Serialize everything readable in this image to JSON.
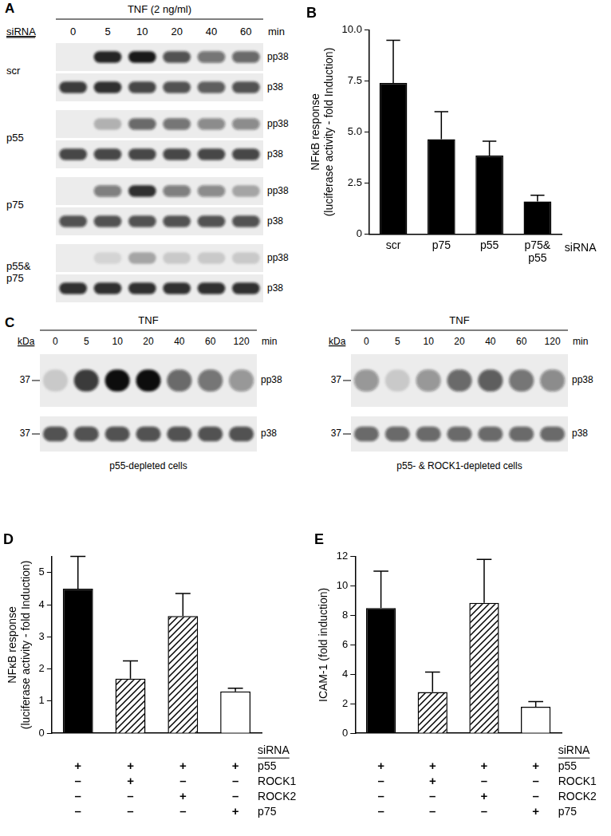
{
  "panel_A": {
    "label": "A",
    "treatment": "TNF (2 ng/ml)",
    "siRNA_label": "siRNA",
    "times": [
      0,
      5,
      10,
      20,
      40,
      60
    ],
    "time_unit": "min",
    "groups": [
      {
        "siRNA": "scr",
        "rows": [
          {
            "name": "pp38",
            "band_intensity": [
              0.0,
              0.9,
              0.95,
              0.7,
              0.55,
              0.6
            ]
          },
          {
            "name": "p38",
            "band_intensity": [
              0.8,
              0.85,
              0.75,
              0.7,
              0.65,
              0.7
            ]
          }
        ]
      },
      {
        "siRNA": "p55",
        "rows": [
          {
            "name": "pp38",
            "band_intensity": [
              0.0,
              0.25,
              0.6,
              0.55,
              0.45,
              0.45
            ]
          },
          {
            "name": "p38",
            "band_intensity": [
              0.75,
              0.75,
              0.75,
              0.75,
              0.75,
              0.75
            ]
          }
        ]
      },
      {
        "siRNA": "p75",
        "rows": [
          {
            "name": "pp38",
            "band_intensity": [
              0.0,
              0.5,
              0.85,
              0.5,
              0.45,
              0.3
            ]
          },
          {
            "name": "p38",
            "band_intensity": [
              0.7,
              0.7,
              0.7,
              0.7,
              0.7,
              0.7
            ]
          }
        ]
      },
      {
        "siRNA": "p55&\np75",
        "rows": [
          {
            "name": "pp38",
            "band_intensity": [
              0.0,
              0.1,
              0.3,
              0.15,
              0.15,
              0.15
            ]
          },
          {
            "name": "p38",
            "band_intensity": [
              0.85,
              0.85,
              0.85,
              0.85,
              0.85,
              0.85
            ]
          }
        ]
      }
    ]
  },
  "panel_C": {
    "label": "C",
    "blots": [
      {
        "kDa_label": "kDa",
        "treatment": "TNF",
        "times": [
          0,
          5,
          10,
          20,
          40,
          60,
          120
        ],
        "time_unit": "min",
        "caption": "p55-depleted cells",
        "rows": [
          {
            "name": "pp38",
            "kDa": 37,
            "band_intensity": [
              0.15,
              0.8,
              1.0,
              1.0,
              0.6,
              0.55,
              0.4
            ]
          },
          {
            "name": "p38",
            "kDa": 37,
            "band_intensity": [
              0.7,
              0.7,
              0.7,
              0.7,
              0.7,
              0.7,
              0.7
            ]
          }
        ]
      },
      {
        "kDa_label": "kDa",
        "treatment": "TNF",
        "times": [
          0,
          5,
          10,
          20,
          40,
          60,
          120
        ],
        "time_unit": "min",
        "caption": "p55- & ROCK1-depleted cells",
        "rows": [
          {
            "name": "pp38",
            "kDa": 37,
            "band_intensity": [
              0.4,
              0.15,
              0.4,
              0.6,
              0.65,
              0.55,
              0.45
            ]
          },
          {
            "name": "p38",
            "kDa": 37,
            "band_intensity": [
              0.6,
              0.6,
              0.6,
              0.6,
              0.6,
              0.6,
              0.6
            ]
          }
        ]
      }
    ]
  },
  "chart_data": [
    {
      "type": "bar",
      "title": "B",
      "categories": [
        "scr",
        "p75",
        "p55",
        "p75&\np55"
      ],
      "values": [
        7.4,
        4.65,
        3.85,
        1.6
      ],
      "errors": [
        2.1,
        1.35,
        0.7,
        0.3
      ],
      "color": "#000000",
      "y_label": [
        "NFκB response",
        "(luciferase activity - fold Induction)"
      ],
      "x_label": "siRNA",
      "ylim": [
        0,
        10
      ],
      "yticks": [
        0,
        2.5,
        {
          "value": 5,
          "label": "5.0"
        },
        7.5,
        {
          "value": 10,
          "label": "10.0"
        }
      ],
      "grid": false
    },
    {
      "type": "bar",
      "title": "D",
      "categories": [
        null,
        null,
        null,
        null
      ],
      "values": [
        4.5,
        1.7,
        3.65,
        1.3
      ],
      "errors": [
        1.0,
        0.55,
        0.7,
        0.1
      ],
      "colors": [
        "#000000",
        "hatched",
        "hatched",
        "#ffffff"
      ],
      "y_label": [
        "NFκB response",
        "(luciferase activity - fold Induction)"
      ],
      "ylim": [
        0,
        5.5
      ],
      "yticks": [
        0,
        1,
        2,
        3,
        4,
        5
      ],
      "grid": false,
      "x_table": {
        "title": "siRNA",
        "rows": [
          {
            "label": "p55",
            "marks": [
              "+",
              "+",
              "+",
              "+"
            ]
          },
          {
            "label": "ROCK1",
            "marks": [
              "–",
              "+",
              "–",
              "–"
            ]
          },
          {
            "label": "ROCK2",
            "marks": [
              "–",
              "–",
              "+",
              "–"
            ]
          },
          {
            "label": "p75",
            "marks": [
              "–",
              "–",
              "–",
              "+"
            ]
          }
        ]
      }
    },
    {
      "type": "bar",
      "title": "E",
      "categories": [
        null,
        null,
        null,
        null
      ],
      "values": [
        8.5,
        2.8,
        8.85,
        1.8
      ],
      "errors": [
        2.5,
        1.35,
        2.95,
        0.35
      ],
      "colors": [
        "#000000",
        "hatched",
        "hatched",
        "#ffffff"
      ],
      "y_label": [
        "ICAM-1 (fold induction)"
      ],
      "ylim": [
        0,
        12
      ],
      "yticks": [
        0,
        2,
        4,
        6,
        8,
        10,
        12
      ],
      "grid": false,
      "x_table": {
        "title": "siRNA",
        "rows": [
          {
            "label": "p55",
            "marks": [
              "+",
              "+",
              "+",
              "+"
            ]
          },
          {
            "label": "ROCK1",
            "marks": [
              "–",
              "+",
              "–",
              "–"
            ]
          },
          {
            "label": "ROCK2",
            "marks": [
              "–",
              "–",
              "+",
              "–"
            ]
          },
          {
            "label": "p75",
            "marks": [
              "–",
              "–",
              "–",
              "+"
            ]
          }
        ]
      }
    }
  ]
}
